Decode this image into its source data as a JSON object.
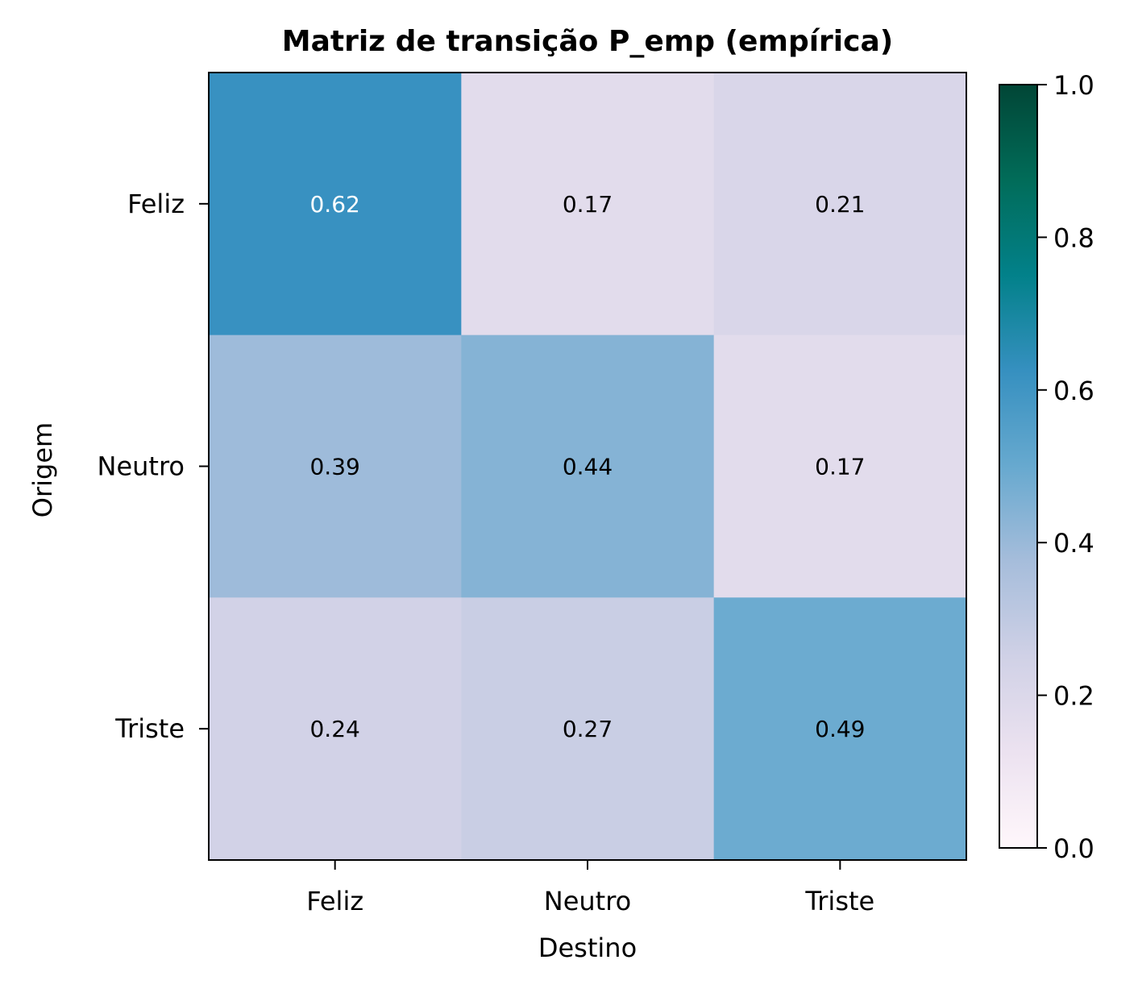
{
  "chart_data": {
    "type": "heatmap",
    "title": "Matriz de transição P_emp (empírica)",
    "xlabel": "Destino",
    "ylabel": "Origem",
    "x_categories": [
      "Feliz",
      "Neutro",
      "Triste"
    ],
    "y_categories": [
      "Feliz",
      "Neutro",
      "Triste"
    ],
    "values": [
      [
        0.62,
        0.17,
        0.21
      ],
      [
        0.39,
        0.44,
        0.17
      ],
      [
        0.24,
        0.27,
        0.49
      ]
    ],
    "value_labels": [
      [
        "0.62",
        "0.17",
        "0.21"
      ],
      [
        "0.39",
        "0.44",
        "0.17"
      ],
      [
        "0.24",
        "0.27",
        "0.49"
      ]
    ],
    "colormap": "PuBuGn",
    "vmin": 0.0,
    "vmax": 1.0,
    "colorbar_ticks": [
      "0.0",
      "0.2",
      "0.4",
      "0.6",
      "0.8",
      "1.0"
    ],
    "colorbar_tick_values": [
      0.0,
      0.2,
      0.4,
      0.6,
      0.8,
      1.0
    ],
    "colormap_stops": [
      {
        "v": 0.0,
        "color": "#fff7fb"
      },
      {
        "v": 0.125,
        "color": "#ece2f0"
      },
      {
        "v": 0.25,
        "color": "#d0d1e6"
      },
      {
        "v": 0.375,
        "color": "#a6bddb"
      },
      {
        "v": 0.5,
        "color": "#67a9cf"
      },
      {
        "v": 0.625,
        "color": "#3690c0"
      },
      {
        "v": 0.75,
        "color": "#02818a"
      },
      {
        "v": 0.875,
        "color": "#016c59"
      },
      {
        "v": 1.0,
        "color": "#014636"
      }
    ],
    "grid": false
  }
}
